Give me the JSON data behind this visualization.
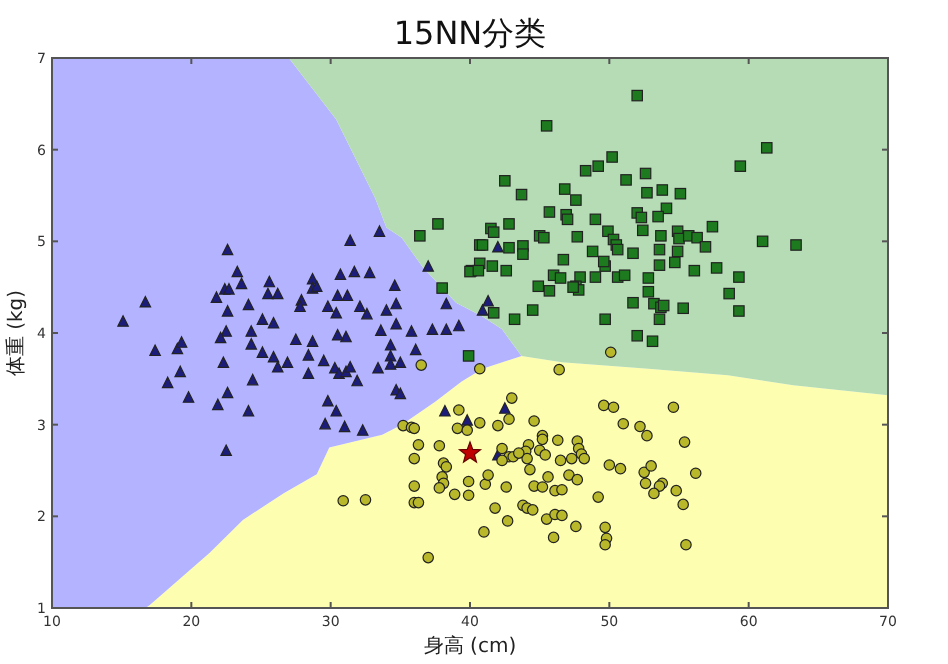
{
  "chart_data": {
    "type": "scatter",
    "title": "15NN分类",
    "xlabel": "身高 (cm)",
    "ylabel": "体重 (kg)",
    "xlim": [
      10,
      70
    ],
    "ylim": [
      1,
      7
    ],
    "xticks": [
      10,
      20,
      30,
      40,
      50,
      60,
      70
    ],
    "yticks": [
      1,
      2,
      3,
      4,
      5,
      6,
      7
    ],
    "series": [
      {
        "color": "#1c1c7a",
        "marker": "triangle",
        "x": [
          15.1,
          16.7,
          22.6,
          23.3,
          22.4,
          22.7,
          23.6,
          21.8,
          22.6,
          24.1,
          25.6,
          25.5,
          26.2,
          25.1,
          25.9,
          24.3,
          22.5,
          22.1,
          28.7,
          28.7,
          29.0,
          27.9,
          27.8,
          29.8,
          30.4,
          30.7,
          31.4,
          31.7,
          32.8,
          30.5,
          31.2,
          32.1,
          32.6,
          33.5,
          34.6,
          34.0,
          34.7,
          33.6,
          34.7,
          35.8,
          37.0,
          37.3,
          38.3,
          38.3,
          39.2,
          31.1,
          30.5,
          27.5,
          28.7,
          24.3,
          17.4,
          19.0,
          19.3,
          22.3,
          19.2,
          18.3,
          19.8,
          21.9,
          22.6,
          24.1,
          24.4,
          25.1,
          25.9,
          26.2,
          26.9,
          28.4,
          28.4,
          29.5,
          30.3,
          30.6,
          31.1,
          31.4,
          31.9,
          29.8,
          30.4,
          29.6,
          31.0,
          32.3,
          22.5,
          33.4,
          34.3,
          34.3,
          34.3,
          35.0,
          34.7,
          35.0,
          36.1,
          38.2,
          39.8,
          42.0,
          42.5,
          42.0,
          41.3,
          40.9
        ],
        "values": [
          4.12,
          4.33,
          4.9,
          4.66,
          4.47,
          4.47,
          4.53,
          4.38,
          4.23,
          4.3,
          4.55,
          4.42,
          4.42,
          4.14,
          4.1,
          4.01,
          4.01,
          3.94,
          4.58,
          4.48,
          4.5,
          4.35,
          4.28,
          4.28,
          4.21,
          4.63,
          5.0,
          4.66,
          4.65,
          4.4,
          4.4,
          4.28,
          4.2,
          5.1,
          4.51,
          4.24,
          4.31,
          4.02,
          4.09,
          4.01,
          4.72,
          4.03,
          4.03,
          4.31,
          4.07,
          3.95,
          3.97,
          3.92,
          3.9,
          3.87,
          3.8,
          3.82,
          3.89,
          3.67,
          3.57,
          3.45,
          3.29,
          3.21,
          3.34,
          3.14,
          3.48,
          3.78,
          3.73,
          3.62,
          3.67,
          3.75,
          3.55,
          3.69,
          3.61,
          3.55,
          3.57,
          3.62,
          3.47,
          3.25,
          3.14,
          3.0,
          2.97,
          2.93,
          2.71,
          3.61,
          3.86,
          3.74,
          3.65,
          3.67,
          3.37,
          3.33,
          3.81,
          3.14,
          3.04,
          2.66,
          3.17,
          4.93,
          4.34,
          4.24
        ]
      },
      {
        "color": "#1e7a1e",
        "marker": "square",
        "x": [
          36.4,
          37.7,
          40.7,
          40.1,
          40.7,
          38.0,
          39.9,
          52.0,
          45.5,
          61.3,
          59.4,
          50.2,
          48.3,
          49.2,
          51.2,
          52.6,
          42.5,
          43.7,
          46.8,
          47.6,
          52.7,
          53.8,
          55.1,
          54.1,
          53.5,
          45.7,
          46.9,
          47.0,
          49.0,
          52.0,
          52.3,
          42.8,
          41.5,
          41.7,
          45.0,
          45.3,
          47.7,
          49.9,
          50.3,
          50.5,
          50.6,
          52.4,
          53.7,
          54.9,
          55.0,
          55.7,
          56.3,
          57.4,
          61.0,
          63.4,
          40.9,
          42.8,
          43.8,
          43.8,
          40.0,
          40.6,
          41.6,
          42.6,
          48.8,
          49.7,
          49.6,
          46.7,
          51.7,
          53.6,
          54.9,
          53.6,
          54.7,
          56.9,
          56.1,
          57.7,
          59.3,
          58.6,
          59.3,
          46.0,
          46.5,
          47.9,
          49.0,
          47.6,
          47.8,
          47.4,
          44.9,
          45.7,
          50.6,
          51.1,
          52.8,
          52.8,
          51.7,
          53.2,
          53.7,
          53.9,
          55.3,
          44.5,
          43.2,
          41.7,
          49.7,
          53.6,
          52.0,
          53.1
        ],
        "values": [
          5.06,
          5.19,
          4.96,
          4.68,
          4.76,
          4.49,
          3.75,
          6.59,
          6.26,
          6.02,
          5.82,
          5.92,
          5.77,
          5.82,
          5.67,
          5.74,
          5.66,
          5.51,
          5.57,
          5.45,
          5.53,
          5.56,
          5.52,
          5.36,
          5.27,
          5.32,
          5.29,
          5.24,
          5.24,
          5.31,
          5.26,
          5.19,
          5.14,
          5.1,
          5.06,
          5.04,
          5.05,
          5.11,
          5.02,
          4.96,
          4.91,
          5.12,
          5.06,
          5.11,
          5.03,
          5.06,
          5.04,
          5.16,
          5.0,
          4.96,
          4.96,
          4.93,
          4.95,
          4.86,
          4.67,
          4.68,
          4.73,
          4.68,
          4.89,
          4.73,
          4.78,
          4.8,
          4.87,
          4.91,
          4.89,
          4.74,
          4.77,
          4.94,
          4.68,
          4.71,
          4.61,
          4.43,
          4.24,
          4.63,
          4.6,
          4.61,
          4.61,
          4.51,
          4.47,
          4.5,
          4.51,
          4.46,
          4.61,
          4.63,
          4.6,
          4.45,
          4.33,
          4.32,
          4.28,
          4.3,
          4.27,
          4.25,
          4.15,
          4.22,
          4.15,
          4.15,
          3.97,
          3.91
        ]
      },
      {
        "color": "#b8b82a",
        "marker": "circle",
        "x": [
          36.5,
          40.7,
          39.2,
          35.2,
          35.8,
          36.0,
          39.1,
          39.8,
          40.7,
          36.3,
          36.0,
          37.8,
          38.1,
          38.3,
          38.0,
          38.1,
          37.8,
          38.9,
          39.9,
          39.9,
          36.0,
          36.0,
          36.3,
          30.9,
          32.5,
          37.0,
          46.4,
          50.1,
          43.0,
          42.8,
          44.6,
          42.0,
          49.6,
          50.3,
          54.6,
          51.0,
          52.2,
          52.7,
          55.4,
          45.2,
          45.2,
          44.2,
          44.0,
          44.1,
          42.3,
          42.8,
          43.1,
          42.3,
          43.5,
          45.0,
          45.4,
          46.3,
          46.5,
          47.3,
          47.7,
          47.8,
          48.0,
          48.2,
          44.3,
          45.6,
          47.1,
          47.7,
          50.0,
          50.8,
          44.6,
          45.2,
          46.1,
          46.6,
          52.5,
          53.0,
          52.6,
          53.8,
          53.6,
          53.2,
          54.8,
          56.2,
          41.1,
          42.6,
          41.3,
          49.2,
          55.3,
          41.8,
          42.7,
          41.0,
          43.8,
          44.1,
          44.5,
          45.5,
          46.1,
          46.6,
          47.6,
          46.0,
          49.7,
          49.8,
          49.7,
          55.5
        ],
        "values": [
          3.65,
          3.61,
          3.16,
          2.99,
          2.97,
          2.96,
          2.96,
          2.94,
          3.02,
          2.78,
          2.63,
          2.77,
          2.58,
          2.54,
          2.43,
          2.36,
          2.31,
          2.24,
          2.38,
          2.23,
          2.33,
          2.15,
          2.15,
          2.17,
          2.18,
          1.55,
          3.6,
          3.79,
          3.29,
          3.06,
          3.04,
          2.99,
          3.21,
          3.19,
          3.19,
          3.01,
          2.98,
          2.88,
          2.81,
          2.88,
          2.84,
          2.78,
          2.71,
          2.63,
          2.74,
          2.65,
          2.65,
          2.61,
          2.69,
          2.72,
          2.67,
          2.83,
          2.61,
          2.63,
          2.82,
          2.74,
          2.68,
          2.63,
          2.51,
          2.43,
          2.45,
          2.4,
          2.56,
          2.52,
          2.33,
          2.32,
          2.28,
          2.29,
          2.48,
          2.55,
          2.36,
          2.36,
          2.33,
          2.25,
          2.28,
          2.47,
          2.35,
          2.32,
          2.45,
          2.21,
          2.13,
          2.09,
          1.95,
          1.83,
          2.12,
          2.09,
          2.07,
          1.97,
          2.02,
          2.01,
          1.89,
          1.77,
          1.88,
          1.76,
          1.69,
          1.69
        ]
      },
      {
        "color": "#c00000",
        "marker": "star",
        "x": [
          40.0
        ],
        "values": [
          2.69
        ]
      }
    ]
  }
}
